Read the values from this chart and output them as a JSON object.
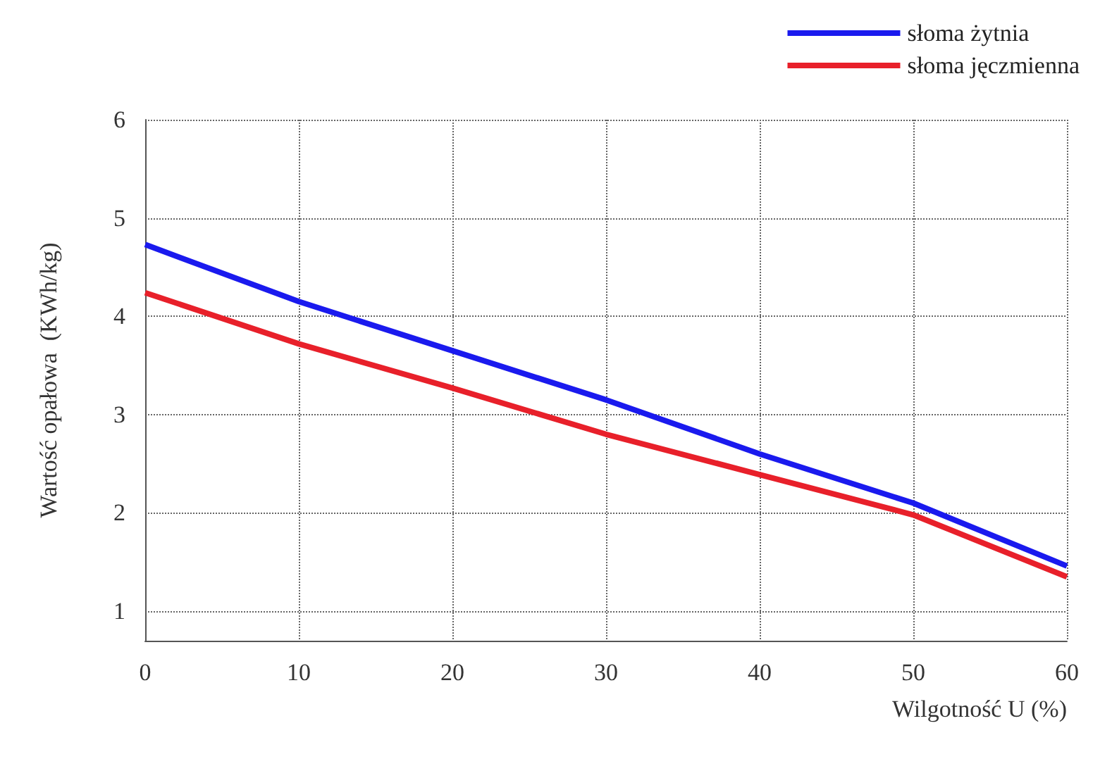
{
  "chart_data": {
    "type": "line",
    "xlabel": "Wilgotność U (%)",
    "ylabel": "Wartość opałowa  (KWh/kg)",
    "x": [
      0,
      10,
      20,
      30,
      40,
      50,
      60
    ],
    "series": [
      {
        "name": "słoma żytnia",
        "color": "#1a1aee",
        "values": [
          4.73,
          4.15,
          3.65,
          3.15,
          2.6,
          2.1,
          1.46
        ]
      },
      {
        "name": "słoma jęczmienna",
        "color": "#e8202a",
        "values": [
          4.24,
          3.72,
          3.27,
          2.8,
          2.39,
          1.98,
          1.35
        ]
      }
    ],
    "xlim": [
      0,
      60
    ],
    "xticks": [
      0,
      10,
      20,
      30,
      40,
      50,
      60
    ],
    "ylim": [
      0.7,
      6
    ],
    "yticks": [
      1,
      2,
      3,
      4,
      5,
      6
    ],
    "grid": true,
    "legend": "top right",
    "marker": "none",
    "line_style": "solid"
  }
}
